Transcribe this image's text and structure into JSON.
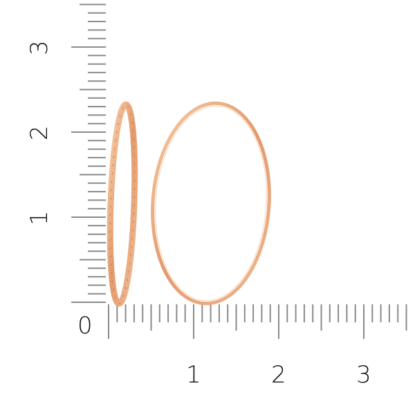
{
  "ruler": {
    "origin_label": "0",
    "x_labels": [
      "1",
      "2",
      "3"
    ],
    "y_labels": [
      "1",
      "2",
      "3"
    ],
    "tick_color": "#8a8a8a",
    "subdivisions_per_unit": 10
  },
  "product": {
    "type": "hoop earrings",
    "metal_color": "#e9a77b"
  }
}
